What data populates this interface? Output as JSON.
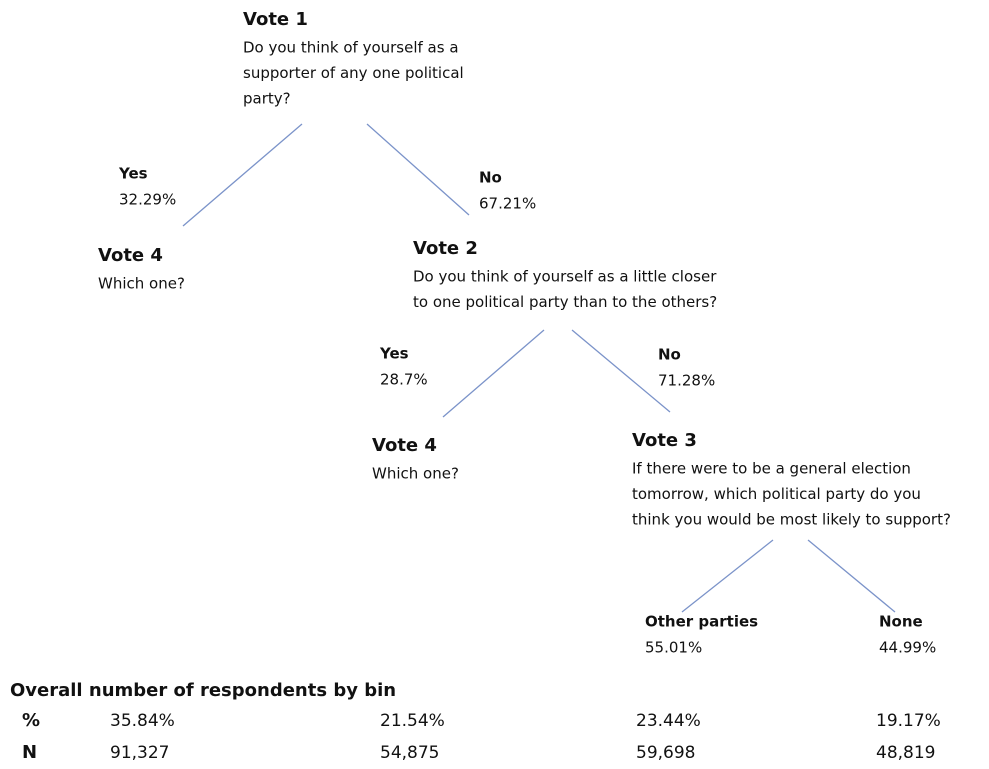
{
  "nodes": [
    {
      "title": "Vote 1",
      "lines": [
        "Do you think of yourself as a",
        "supporter of any one political",
        "party?"
      ]
    },
    {
      "title": "Vote 4",
      "lines": [
        "Which one?"
      ]
    },
    {
      "title": "Vote 2",
      "lines": [
        "Do you think of yourself as a little closer",
        "to one political party than to the others?"
      ]
    },
    {
      "title": "Vote 4",
      "lines": [
        "Which one?"
      ]
    },
    {
      "title": "Vote 3",
      "lines": [
        "If there were to be a general election",
        "tomorrow, which political party do you",
        "think you would be most likely to support?"
      ]
    }
  ],
  "branches": [
    {
      "label": "Yes",
      "share": "32.29%"
    },
    {
      "label": "No",
      "share": "67.21%"
    },
    {
      "label": "Yes",
      "share": "28.7%"
    },
    {
      "label": "No",
      "share": "71.28%"
    },
    {
      "label": "Other parties",
      "share": "55.01%"
    },
    {
      "label": "None",
      "share": "44.99%"
    }
  ],
  "table": {
    "title": "Overall number of respondents by bin",
    "rows": [
      [
        "%",
        "35.84%",
        "21.54%",
        "23.44%",
        "19.17%"
      ],
      [
        "N",
        "91,327",
        "54,875",
        "59,698",
        "48,819"
      ]
    ]
  }
}
